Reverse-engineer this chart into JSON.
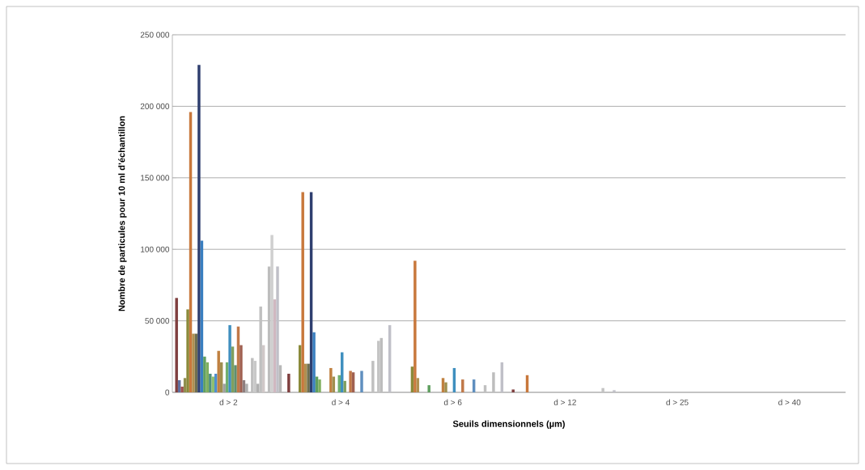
{
  "chart_data": {
    "type": "bar",
    "xlabel": "Seuils dimensionnels (µm)",
    "ylabel": "Nombre de particules pour 10 ml d’échantillon",
    "categories": [
      "d > 2",
      "d > 4",
      "d > 6",
      "d > 12",
      "d > 25",
      "d > 40"
    ],
    "ylim": [
      0,
      250000
    ],
    "yticks": [
      0,
      {
        "value": 50000,
        "label": "50 000"
      },
      {
        "value": 100000,
        "label": "100 000"
      },
      {
        "value": 150000,
        "label": "150 000"
      },
      {
        "value": 200000,
        "label": "200 000"
      },
      {
        "value": 250000,
        "label": "250 000"
      }
    ],
    "grid": "y",
    "series": [
      {
        "color": "#7f3f3f",
        "values": [
          66000,
          13000,
          null,
          2000,
          null,
          null
        ]
      },
      {
        "color": "#5f6f9f",
        "values": [
          8500,
          null,
          null,
          null,
          null,
          null
        ]
      },
      {
        "color": "#9f4f4f",
        "values": [
          4000,
          null,
          null,
          null,
          null,
          null
        ]
      },
      {
        "color": "#8f8f4f",
        "values": [
          10000,
          null,
          null,
          null,
          null,
          null
        ]
      },
      {
        "color": "#8a8a3a",
        "values": [
          58000,
          33000,
          18000,
          null,
          null,
          null
        ]
      },
      {
        "color": "#c8783c",
        "values": [
          196000,
          140000,
          92000,
          12000,
          null,
          null
        ]
      },
      {
        "color": "#b09050",
        "values": [
          41000,
          20000,
          10000,
          null,
          null,
          null
        ]
      },
      {
        "color": "#6f6f4f",
        "values": [
          41000,
          20000,
          null,
          null,
          null,
          null
        ]
      },
      {
        "color": "#2f3f6f",
        "values": [
          229000,
          140000,
          null,
          null,
          null,
          null
        ]
      },
      {
        "color": "#3a7fc0",
        "values": [
          106000,
          42000,
          null,
          null,
          null,
          null
        ]
      },
      {
        "color": "#5f9f5f",
        "values": [
          25000,
          11000,
          5000,
          null,
          null,
          null
        ]
      },
      {
        "color": "#7faf5f",
        "values": [
          21000,
          9000,
          null,
          null,
          null,
          null
        ]
      },
      {
        "color": "#4f8f7f",
        "values": [
          13000,
          null,
          null,
          null,
          null,
          null
        ]
      },
      {
        "color": "#8fbf6f",
        "values": [
          11000,
          null,
          null,
          null,
          null,
          null
        ]
      },
      {
        "color": "#4f8fcf",
        "values": [
          13000,
          null,
          null,
          null,
          null,
          null
        ]
      },
      {
        "color": "#c08040",
        "values": [
          29000,
          17000,
          10000,
          null,
          null,
          null
        ]
      },
      {
        "color": "#9f8f4f",
        "values": [
          21000,
          11000,
          7000,
          null,
          null,
          null
        ]
      },
      {
        "color": "#9f9f9f",
        "values": [
          6000,
          null,
          null,
          null,
          null,
          null
        ]
      },
      {
        "color": "#6faf6f",
        "values": [
          21000,
          12000,
          null,
          null,
          null,
          null
        ]
      },
      {
        "color": "#3f8fbf",
        "values": [
          47000,
          28000,
          17000,
          null,
          null,
          null
        ]
      },
      {
        "color": "#7f9f5f",
        "values": [
          32000,
          8000,
          null,
          null,
          null,
          null
        ]
      },
      {
        "color": "#5f8f6f",
        "values": [
          19000,
          null,
          null,
          null,
          null,
          null
        ]
      },
      {
        "color": "#c07848",
        "values": [
          46000,
          15000,
          9000,
          null,
          null,
          null
        ]
      },
      {
        "color": "#a06050",
        "values": [
          33000,
          14000,
          null,
          null,
          null,
          null
        ]
      },
      {
        "color": "#8f7f7f",
        "values": [
          8500,
          null,
          null,
          null,
          null,
          null
        ]
      },
      {
        "color": "#afafaf",
        "values": [
          6000,
          null,
          null,
          null,
          null,
          null
        ]
      },
      {
        "color": "#5f8fbf",
        "values": [
          null,
          15000,
          9000,
          null,
          null,
          null
        ]
      },
      {
        "color": "#bfbfbf",
        "values": [
          24000,
          null,
          null,
          null,
          null,
          null
        ]
      },
      {
        "color": "#c8c8c8",
        "values": [
          22000,
          null,
          null,
          null,
          null,
          null
        ]
      },
      {
        "color": "#b0b0b0",
        "values": [
          6000,
          null,
          null,
          null,
          null,
          null
        ]
      },
      {
        "color": "#c0c0c0",
        "values": [
          60000,
          22000,
          5000,
          null,
          null,
          null
        ]
      },
      {
        "color": "#d0c8c8",
        "values": [
          33000,
          null,
          null,
          null,
          null,
          null
        ]
      },
      {
        "color": "#c4c4c4",
        "values": [
          null,
          36000,
          null,
          3000,
          null,
          null
        ]
      },
      {
        "color": "#bdbdbd",
        "values": [
          88000,
          38000,
          14000,
          null,
          null,
          null
        ]
      },
      {
        "color": "#cfcfcf",
        "values": [
          110000,
          null,
          null,
          null,
          null,
          null
        ]
      },
      {
        "color": "#d0b8c0",
        "values": [
          65000,
          null,
          null,
          null,
          null,
          null
        ]
      },
      {
        "color": "#c0c0c8",
        "values": [
          88000,
          47000,
          21000,
          1500,
          null,
          null
        ]
      },
      {
        "color": "#b8b8b8",
        "values": [
          19000,
          null,
          null,
          null,
          null,
          null
        ]
      }
    ]
  }
}
